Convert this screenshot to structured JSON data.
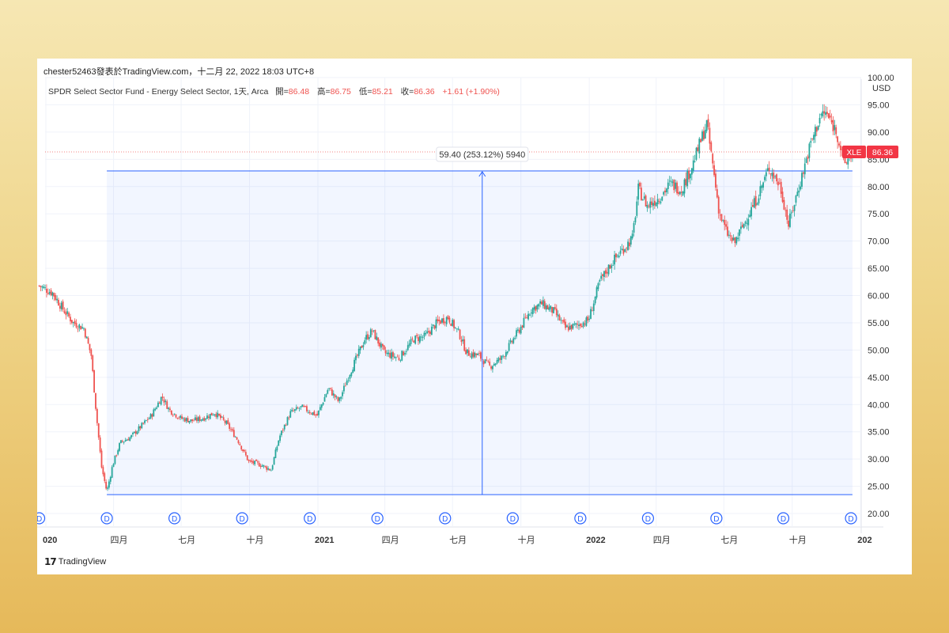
{
  "attribution": "chester52463發表於TradingView.com，十二月 22, 2022 18:03 UTC+8",
  "legend": {
    "title": "SPDR Select Sector Fund - Energy Select Sector, 1天, Arca",
    "open_label": "開=",
    "open": "86.48",
    "high_label": "高=",
    "high": "86.75",
    "low_label": "低=",
    "low": "85.21",
    "close_label": "收=",
    "close": "86.36",
    "change": "+1.61 (+1.90%)"
  },
  "currency": "USD",
  "footer_logo": "TradingView",
  "colors": {
    "up": "#26a69a",
    "down": "#ef5350",
    "measure": "#2962ff",
    "badge": "#f23645"
  },
  "chart_data": {
    "type": "candlestick",
    "ylim": [
      20,
      100
    ],
    "y_ticks": [
      "100.00",
      "95.00",
      "90.00",
      "85.00",
      "80.00",
      "75.00",
      "70.00",
      "65.00",
      "60.00",
      "55.00",
      "50.00",
      "45.00",
      "40.00",
      "35.00",
      "30.00",
      "25.00",
      "20.00"
    ],
    "x_ticks": [
      {
        "date": "2020-01-01",
        "label": "020",
        "bold": true
      },
      {
        "date": "2020-04-01",
        "label": "四月",
        "bold": false
      },
      {
        "date": "2020-07-01",
        "label": "七月",
        "bold": false
      },
      {
        "date": "2020-10-01",
        "label": "十月",
        "bold": false
      },
      {
        "date": "2021-01-01",
        "label": "2021",
        "bold": true
      },
      {
        "date": "2021-04-01",
        "label": "四月",
        "bold": false
      },
      {
        "date": "2021-07-01",
        "label": "七月",
        "bold": false
      },
      {
        "date": "2021-10-01",
        "label": "十月",
        "bold": false
      },
      {
        "date": "2022-01-01",
        "label": "2022",
        "bold": true
      },
      {
        "date": "2022-04-01",
        "label": "四月",
        "bold": false
      },
      {
        "date": "2022-07-01",
        "label": "七月",
        "bold": false
      },
      {
        "date": "2022-10-01",
        "label": "十月",
        "bold": false
      },
      {
        "date": "2023-01-01",
        "label": "202",
        "bold": true
      }
    ],
    "dividend_marker": "D",
    "dividend_dates": [
      "2019-12-23",
      "2020-03-23",
      "2020-06-22",
      "2020-09-21",
      "2020-12-21",
      "2021-03-22",
      "2021-06-21",
      "2021-09-20",
      "2021-12-20",
      "2022-03-21",
      "2022-06-21",
      "2022-09-19",
      "2022-12-19"
    ],
    "price_path": [
      [
        "2019-12-23",
        61.8
      ],
      [
        "2020-01-10",
        60.5
      ],
      [
        "2020-01-24",
        57.5
      ],
      [
        "2020-02-07",
        55.0
      ],
      [
        "2020-02-21",
        54.0
      ],
      [
        "2020-03-02",
        49.0
      ],
      [
        "2020-03-09",
        38.0
      ],
      [
        "2020-03-16",
        28.5
      ],
      [
        "2020-03-23",
        24.0
      ],
      [
        "2020-03-31",
        29.0
      ],
      [
        "2020-04-10",
        33.0
      ],
      [
        "2020-04-24",
        34.0
      ],
      [
        "2020-05-08",
        36.0
      ],
      [
        "2020-05-22",
        38.0
      ],
      [
        "2020-06-05",
        41.5
      ],
      [
        "2020-06-15",
        39.0
      ],
      [
        "2020-06-30",
        37.5
      ],
      [
        "2020-07-15",
        37.0
      ],
      [
        "2020-07-31",
        37.5
      ],
      [
        "2020-08-15",
        38.5
      ],
      [
        "2020-08-31",
        36.5
      ],
      [
        "2020-09-15",
        33.5
      ],
      [
        "2020-09-30",
        29.5
      ],
      [
        "2020-10-15",
        29.0
      ],
      [
        "2020-10-30",
        28.0
      ],
      [
        "2020-11-10",
        34.0
      ],
      [
        "2020-11-25",
        38.5
      ],
      [
        "2020-12-10",
        39.5
      ],
      [
        "2020-12-31",
        38.0
      ],
      [
        "2021-01-15",
        43.0
      ],
      [
        "2021-01-29",
        40.5
      ],
      [
        "2021-02-12",
        45.5
      ],
      [
        "2021-03-05",
        52.0
      ],
      [
        "2021-03-15",
        53.5
      ],
      [
        "2021-03-31",
        49.5
      ],
      [
        "2021-04-20",
        48.5
      ],
      [
        "2021-05-10",
        52.0
      ],
      [
        "2021-05-25",
        52.5
      ],
      [
        "2021-06-10",
        55.0
      ],
      [
        "2021-06-25",
        56.0
      ],
      [
        "2021-07-10",
        53.0
      ],
      [
        "2021-07-20",
        49.5
      ],
      [
        "2021-08-05",
        49.0
      ],
      [
        "2021-08-20",
        47.0
      ],
      [
        "2021-09-05",
        48.5
      ],
      [
        "2021-09-30",
        54.0
      ],
      [
        "2021-10-15",
        57.5
      ],
      [
        "2021-10-29",
        58.5
      ],
      [
        "2021-11-15",
        57.0
      ],
      [
        "2021-11-30",
        54.0
      ],
      [
        "2021-12-15",
        54.5
      ],
      [
        "2021-12-31",
        55.5
      ],
      [
        "2022-01-15",
        62.5
      ],
      [
        "2022-01-31",
        66.0
      ],
      [
        "2022-02-15",
        68.5
      ],
      [
        "2022-02-28",
        70.5
      ],
      [
        "2022-03-08",
        79.5
      ],
      [
        "2022-03-20",
        76.5
      ],
      [
        "2022-04-05",
        78.0
      ],
      [
        "2022-04-20",
        80.5
      ],
      [
        "2022-05-05",
        79.5
      ],
      [
        "2022-05-20",
        84.0
      ],
      [
        "2022-06-08",
        91.5
      ],
      [
        "2022-06-15",
        85.0
      ],
      [
        "2022-06-25",
        75.0
      ],
      [
        "2022-07-05",
        71.5
      ],
      [
        "2022-07-15",
        69.5
      ],
      [
        "2022-07-31",
        74.0
      ],
      [
        "2022-08-15",
        78.0
      ],
      [
        "2022-08-31",
        83.5
      ],
      [
        "2022-09-15",
        80.0
      ],
      [
        "2022-09-26",
        73.0
      ],
      [
        "2022-10-10",
        80.0
      ],
      [
        "2022-10-25",
        87.5
      ],
      [
        "2022-11-08",
        93.0
      ],
      [
        "2022-11-15",
        93.5
      ],
      [
        "2022-11-30",
        90.0
      ],
      [
        "2022-12-10",
        84.0
      ],
      [
        "2022-12-21",
        86.4
      ]
    ],
    "last_price_line": 86.36,
    "last_price_badge": {
      "symbol": "XLE",
      "value": "86.36"
    },
    "measure": {
      "label": "59.40 (253.12%) 5940",
      "from_date": "2020-03-23",
      "to_date": "2022-12-21",
      "low": 23.47,
      "high": 82.87,
      "arrow_date": "2021-08-10"
    }
  }
}
